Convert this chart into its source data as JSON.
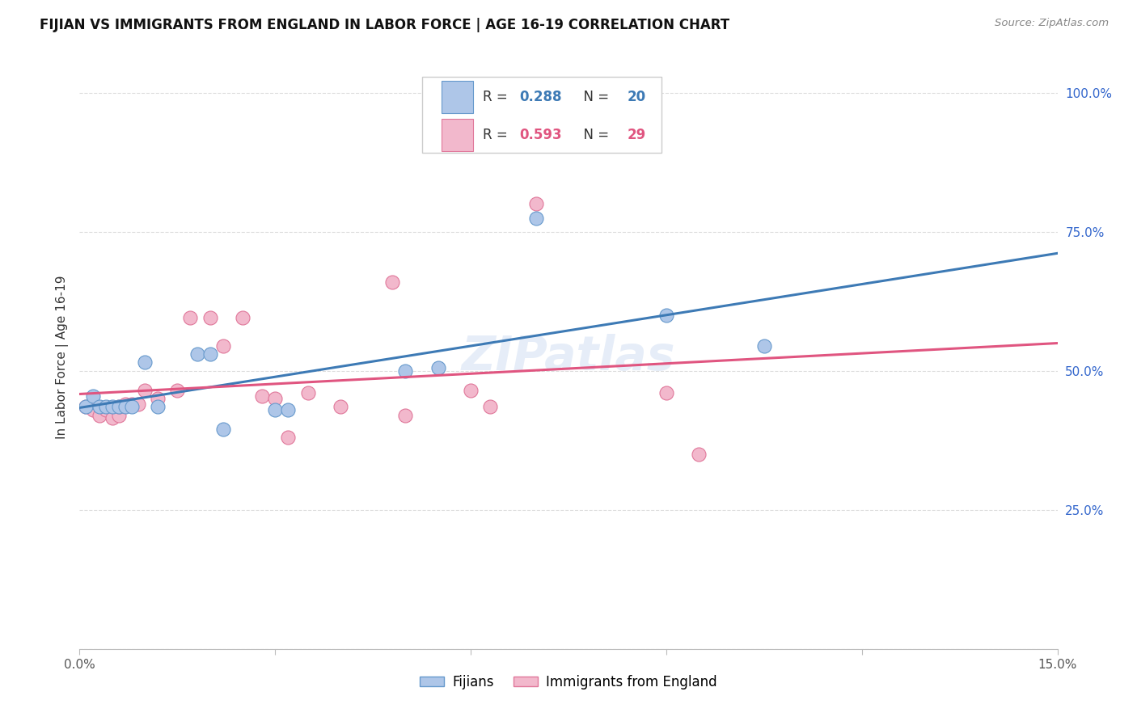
{
  "title": "FIJIAN VS IMMIGRANTS FROM ENGLAND IN LABOR FORCE | AGE 16-19 CORRELATION CHART",
  "source_text": "Source: ZipAtlas.com",
  "ylabel": "In Labor Force | Age 16-19",
  "xlim": [
    0.0,
    0.15
  ],
  "ylim": [
    0.0,
    1.05
  ],
  "fijian_color": "#aec6e8",
  "fijian_edge_color": "#6699cc",
  "england_color": "#f2b8cc",
  "england_edge_color": "#e0779a",
  "trendline_fijian_color": "#3d7ab5",
  "trendline_england_color": "#e05580",
  "r_fijian": 0.288,
  "n_fijian": 20,
  "r_england": 0.593,
  "n_england": 29,
  "fijian_x": [
    0.001,
    0.002,
    0.003,
    0.004,
    0.005,
    0.006,
    0.007,
    0.008,
    0.01,
    0.012,
    0.018,
    0.02,
    0.022,
    0.03,
    0.032,
    0.05,
    0.055,
    0.07,
    0.09,
    0.105
  ],
  "fijian_y": [
    0.435,
    0.455,
    0.435,
    0.435,
    0.435,
    0.435,
    0.435,
    0.435,
    0.515,
    0.435,
    0.53,
    0.53,
    0.395,
    0.43,
    0.43,
    0.5,
    0.505,
    0.775,
    0.6,
    0.545
  ],
  "england_x": [
    0.001,
    0.002,
    0.003,
    0.004,
    0.005,
    0.006,
    0.006,
    0.007,
    0.008,
    0.009,
    0.01,
    0.012,
    0.015,
    0.017,
    0.02,
    0.022,
    0.025,
    0.028,
    0.03,
    0.032,
    0.035,
    0.04,
    0.048,
    0.05,
    0.06,
    0.063,
    0.07,
    0.09,
    0.095
  ],
  "england_y": [
    0.435,
    0.43,
    0.42,
    0.43,
    0.415,
    0.42,
    0.435,
    0.44,
    0.44,
    0.44,
    0.465,
    0.45,
    0.465,
    0.595,
    0.595,
    0.545,
    0.595,
    0.455,
    0.45,
    0.38,
    0.46,
    0.435,
    0.66,
    0.42,
    0.465,
    0.435,
    0.8,
    0.46,
    0.35
  ],
  "watermark_text": "ZIPatlas",
  "background_color": "#ffffff",
  "grid_color": "#dddddd"
}
